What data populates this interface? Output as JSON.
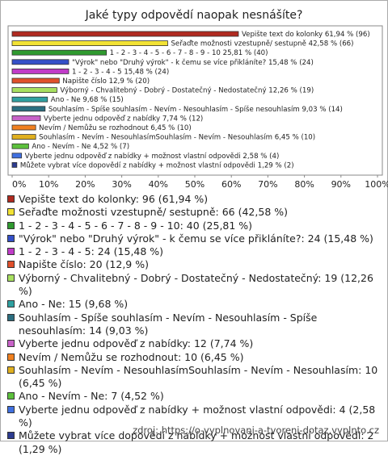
{
  "chart_data": {
    "type": "barh",
    "title": "Jaké typy odpovědí naopak nesnášíte?",
    "categories": [
      "Vepište text do kolonky",
      "Seřaďte možnosti vzestupně/ sestupně",
      "1 - 2 - 3 - 4 - 5 - 6 - 7 - 8 - 9 - 10",
      "\"Výrok\" nebo \"Druhý výrok\" - k čemu se více přikláníte?",
      "1 - 2 - 3 - 4 - 5",
      "Napište číslo",
      "Výborný - Chvalitebný - Dobrý - Dostatečný - Nedostatečný",
      "Ano - Ne",
      "Souhlasím - Spíše souhlasím - Nevím - Nesouhlasím - Spíše nesouhlasím",
      "Vyberte jednu odpověď z nabídky",
      "Nevím / Nemůžu se rozhodnout",
      "Souhlasím - Nevím - NesouhlasímSouhlasím - Nevím - Nesouhlasím",
      "Ano - Nevím - Ne",
      "Vyberte jednu odpověď z nabídky + možnost vlastní odpovědi",
      "Můžete vybrat více dopovědí z nabídky + možnost vlastní odpovědi"
    ],
    "values": [
      61.94,
      42.58,
      25.81,
      15.48,
      15.48,
      12.9,
      12.26,
      9.68,
      9.03,
      7.74,
      6.45,
      6.45,
      4.52,
      2.58,
      1.29
    ],
    "value_labels": [
      "61,94 % (96)",
      "42,58 % (66)",
      "25,81 % (40)",
      "15,48 % (24)",
      "15,48 % (24)",
      "12,9 % (20)",
      "12,26 % (19)",
      "9,68 % (15)",
      "9,03 % (14)",
      "7,74 % (12)",
      "6,45 % (10)",
      "6,45 % (10)",
      "4,52 % (7)",
      "2,58 % (4)",
      "1,29 % (2)"
    ],
    "legend_labels": [
      "Vepište text do kolonky: 96 (61,94 %)",
      "Seřaďte možnosti vzestupně/ sestupně: 66 (42,58 %)",
      "1 - 2 - 3 - 4 - 5 - 6 - 7 - 8 - 9 - 10: 40 (25,81 %)",
      "\"Výrok\" nebo \"Druhý výrok\" - k čemu se více přikláníte?: 24 (15,48 %)",
      "1 - 2 - 3 - 4 - 5: 24 (15,48 %)",
      "Napište číslo: 20 (12,9 %)",
      "Výborný - Chvalitebný - Dobrý - Dostatečný - Nedostatečný: 19 (12,26 %)",
      "Ano - Ne: 15 (9,68 %)",
      "Souhlasím - Spíše souhlasím - Nevím - Nesouhlasím - Spíše nesouhlasím: 14 (9,03 %)",
      "Vyberte jednu odpověď z nabídky: 12 (7,74 %)",
      "Nevím / Nemůžu se rozhodnout: 10 (6,45 %)",
      "Souhlasím - Nevím - NesouhlasímSouhlasím - Nevím - Nesouhlasím: 10 (6,45 %)",
      "Ano - Nevím - Ne: 7 (4,52 %)",
      "Vyberte jednu odpověď z nabídky + možnost vlastní odpovědi: 4 (2,58 %)",
      "Můžete vybrat více dopovědí z nabídky + možnost vlastní odpovědi: 2 (1,29 %)"
    ],
    "colors": [
      "#b02a20",
      "#f2e234",
      "#2f9a2f",
      "#3450c8",
      "#c03cc8",
      "#e0502c",
      "#a8e060",
      "#2fa0a0",
      "#2c6e80",
      "#c862c8",
      "#f08020",
      "#e0b020",
      "#5cc03c",
      "#4070e0",
      "#2c3c90"
    ],
    "xlim": [
      0,
      100
    ],
    "xticks": [
      {
        "value": 0,
        "label": "0%"
      },
      {
        "value": 10,
        "label": "10%"
      },
      {
        "value": 20,
        "label": "20%"
      },
      {
        "value": 30,
        "label": "30%"
      },
      {
        "value": 40,
        "label": "40%"
      },
      {
        "value": 50,
        "label": "50%"
      },
      {
        "value": 60,
        "label": "60%"
      },
      {
        "value": 70,
        "label": "70%"
      },
      {
        "value": 80,
        "label": "80%"
      },
      {
        "value": 90,
        "label": "90%"
      },
      {
        "value": 100,
        "label": "100%"
      }
    ],
    "source": "zdroj: https://o-vyplnovani-a-tvoreni-dotaz.vyplnto.cz"
  }
}
